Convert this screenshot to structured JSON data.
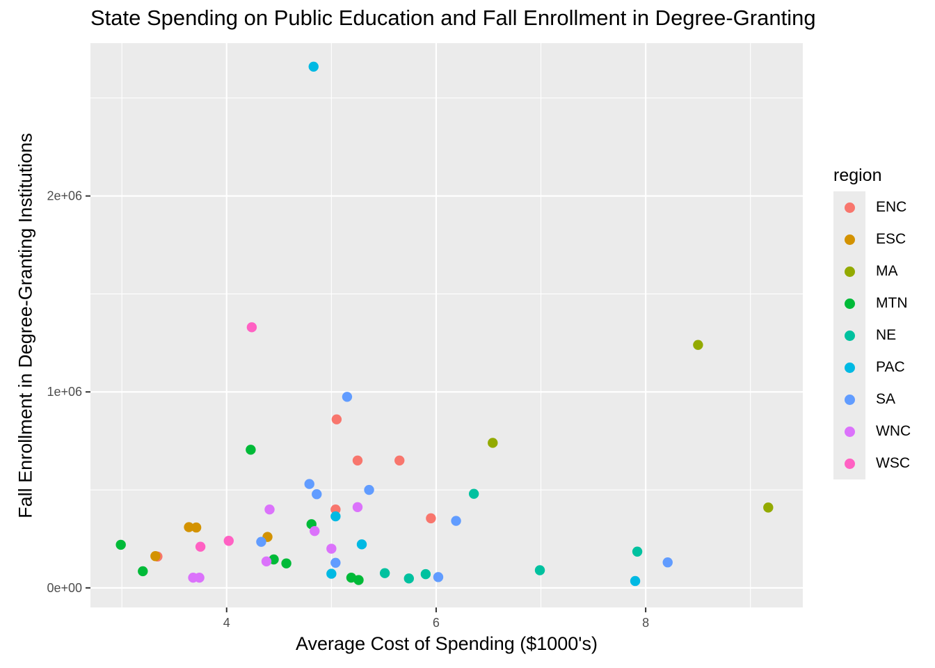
{
  "chart_data": {
    "type": "scatter",
    "title": "State Spending on Public Education and Fall Enrollment in Degree-Granting",
    "xlabel": "Average Cost of Spending ($1000's)",
    "ylabel": "Fall Enrollment in Degree-Granting Institutions",
    "xlim": [
      2.7,
      9.5
    ],
    "ylim": [
      -100000,
      2780000
    ],
    "x_ticks": [
      4,
      6,
      8
    ],
    "x_tick_labels": [
      "4",
      "6",
      "8"
    ],
    "y_ticks": [
      0,
      1000000,
      2000000
    ],
    "y_tick_labels": [
      "0e+00",
      "1e+06",
      "2e+06"
    ],
    "grid": true,
    "legend_title": "region",
    "legend_position": "right",
    "series": [
      {
        "name": "ENC",
        "color": "#F8766D",
        "points": [
          [
            5.05,
            860000
          ],
          [
            5.25,
            650000
          ],
          [
            5.65,
            650000
          ],
          [
            5.04,
            400000
          ],
          [
            5.95,
            355000
          ],
          [
            3.34,
            160000
          ]
        ]
      },
      {
        "name": "ESC",
        "color": "#D39200",
        "points": [
          [
            3.64,
            310000
          ],
          [
            3.71,
            308000
          ],
          [
            4.39,
            260000
          ],
          [
            3.32,
            162000
          ]
        ]
      },
      {
        "name": "MA",
        "color": "#93AA00",
        "points": [
          [
            8.5,
            1240000
          ],
          [
            6.54,
            740000
          ],
          [
            9.17,
            410000
          ]
        ]
      },
      {
        "name": "MTN",
        "color": "#00BA38",
        "points": [
          [
            4.23,
            705000
          ],
          [
            4.81,
            325000
          ],
          [
            2.99,
            220000
          ],
          [
            4.45,
            145000
          ],
          [
            4.57,
            125000
          ],
          [
            3.2,
            85000
          ],
          [
            5.19,
            52000
          ],
          [
            5.26,
            40000
          ]
        ]
      },
      {
        "name": "NE",
        "color": "#00C19F",
        "points": [
          [
            6.36,
            480000
          ],
          [
            7.92,
            185000
          ],
          [
            6.99,
            90000
          ],
          [
            5.51,
            75000
          ],
          [
            5.9,
            70000
          ],
          [
            5.74,
            48000
          ]
        ]
      },
      {
        "name": "PAC",
        "color": "#00B9E3",
        "points": [
          [
            4.83,
            2660000
          ],
          [
            5.04,
            365000
          ],
          [
            5.29,
            222000
          ],
          [
            5.0,
            72000
          ],
          [
            7.9,
            35000
          ]
        ]
      },
      {
        "name": "SA",
        "color": "#619CFF",
        "points": [
          [
            5.15,
            975000
          ],
          [
            4.79,
            530000
          ],
          [
            4.86,
            478000
          ],
          [
            5.36,
            500000
          ],
          [
            6.19,
            342000
          ],
          [
            4.33,
            235000
          ],
          [
            5.04,
            128000
          ],
          [
            8.21,
            130000
          ],
          [
            6.02,
            55000
          ]
        ]
      },
      {
        "name": "WNC",
        "color": "#DB72FB",
        "points": [
          [
            4.41,
            400000
          ],
          [
            5.25,
            412000
          ],
          [
            4.84,
            290000
          ],
          [
            5.0,
            200000
          ],
          [
            4.38,
            135000
          ],
          [
            3.68,
            52000
          ],
          [
            3.74,
            52000
          ]
        ]
      },
      {
        "name": "WSC",
        "color": "#FF61C3",
        "points": [
          [
            4.24,
            1330000
          ],
          [
            4.02,
            240000
          ],
          [
            3.75,
            210000
          ]
        ]
      }
    ]
  }
}
